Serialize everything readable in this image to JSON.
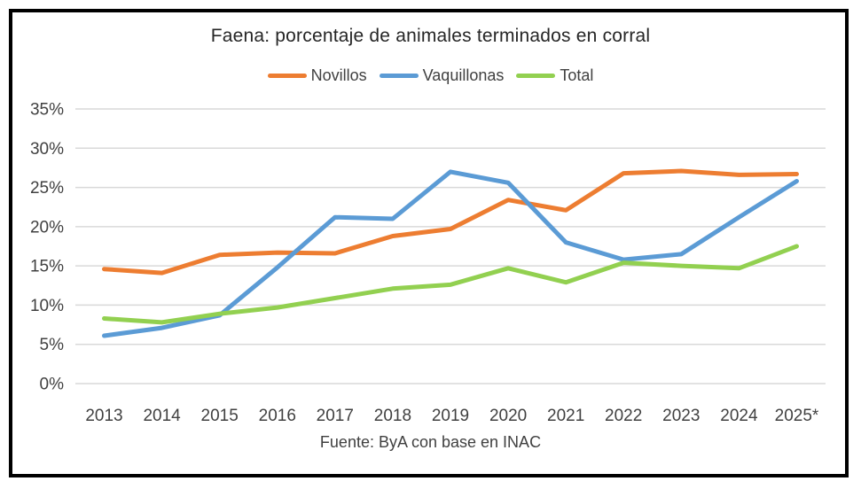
{
  "chart_data": {
    "type": "line",
    "title": "Faena: porcentaje de animales terminados en corral",
    "source": "Fuente: ByA con base en INAC",
    "categories": [
      "2013",
      "2014",
      "2015",
      "2016",
      "2017",
      "2018",
      "2019",
      "2020",
      "2021",
      "2022",
      "2023",
      "2024",
      "2025*"
    ],
    "series": [
      {
        "name": "Novillos",
        "color": "#ED7D31",
        "values": [
          14.6,
          14.1,
          16.4,
          16.7,
          16.6,
          18.8,
          19.7,
          23.4,
          22.1,
          26.8,
          27.1,
          26.6,
          26.7
        ]
      },
      {
        "name": "Vaquillonas",
        "color": "#5B9BD5",
        "values": [
          6.1,
          7.1,
          8.7,
          14.8,
          21.2,
          21.0,
          27.0,
          25.6,
          18.0,
          15.8,
          16.5,
          21.2,
          25.8
        ]
      },
      {
        "name": "Total",
        "color": "#92D050",
        "values": [
          8.3,
          7.8,
          8.9,
          9.7,
          10.9,
          12.1,
          12.6,
          14.7,
          12.9,
          15.4,
          15.0,
          14.7,
          17.5
        ]
      }
    ],
    "y_axis": {
      "min": 0,
      "max": 35,
      "step": 5,
      "tick_labels": [
        "0%",
        "5%",
        "10%",
        "15%",
        "20%",
        "25%",
        "30%",
        "35%"
      ]
    },
    "grid": true,
    "legend_position": "top",
    "styles": {
      "grid_color": "#D9D9D9",
      "text_color": "#404040",
      "title_color": "#262626",
      "frame_border_color": "#000000",
      "background": "#FFFFFF",
      "line_width": 5
    }
  }
}
